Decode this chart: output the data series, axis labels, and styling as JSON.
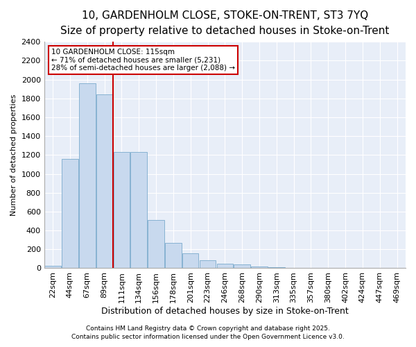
{
  "title": "10, GARDENHOLM CLOSE, STOKE-ON-TRENT, ST3 7YQ",
  "subtitle": "Size of property relative to detached houses in Stoke-on-Trent",
  "xlabel": "Distribution of detached houses by size in Stoke-on-Trent",
  "ylabel": "Number of detached properties",
  "bar_color": "#c8d9ee",
  "bar_edge_color": "#7aaacc",
  "categories": [
    "22sqm",
    "44sqm",
    "67sqm",
    "89sqm",
    "111sqm",
    "134sqm",
    "156sqm",
    "178sqm",
    "201sqm",
    "223sqm",
    "246sqm",
    "268sqm",
    "290sqm",
    "313sqm",
    "335sqm",
    "357sqm",
    "380sqm",
    "402sqm",
    "424sqm",
    "447sqm",
    "469sqm"
  ],
  "values": [
    25,
    1160,
    1960,
    1840,
    1230,
    1230,
    510,
    270,
    155,
    85,
    50,
    40,
    20,
    8,
    4,
    2,
    1,
    1,
    1,
    1,
    1
  ],
  "property_line_x": 4,
  "annotation_text": "10 GARDENHOLM CLOSE: 115sqm\n← 71% of detached houses are smaller (5,231)\n28% of semi-detached houses are larger (2,088) →",
  "annotation_box_color": "#cc0000",
  "ylim": [
    0,
    2400
  ],
  "yticks": [
    0,
    200,
    400,
    600,
    800,
    1000,
    1200,
    1400,
    1600,
    1800,
    2000,
    2200,
    2400
  ],
  "footnote1": "Contains HM Land Registry data © Crown copyright and database right 2025.",
  "footnote2": "Contains public sector information licensed under the Open Government Licence v3.0.",
  "bg_color": "#ffffff",
  "plot_bg_color": "#e8eef8",
  "grid_color": "#ffffff",
  "title_fontsize": 11,
  "subtitle_fontsize": 9,
  "xlabel_fontsize": 9,
  "ylabel_fontsize": 8,
  "tick_fontsize": 8,
  "annotation_fontsize": 7.5,
  "footnote_fontsize": 6.5
}
